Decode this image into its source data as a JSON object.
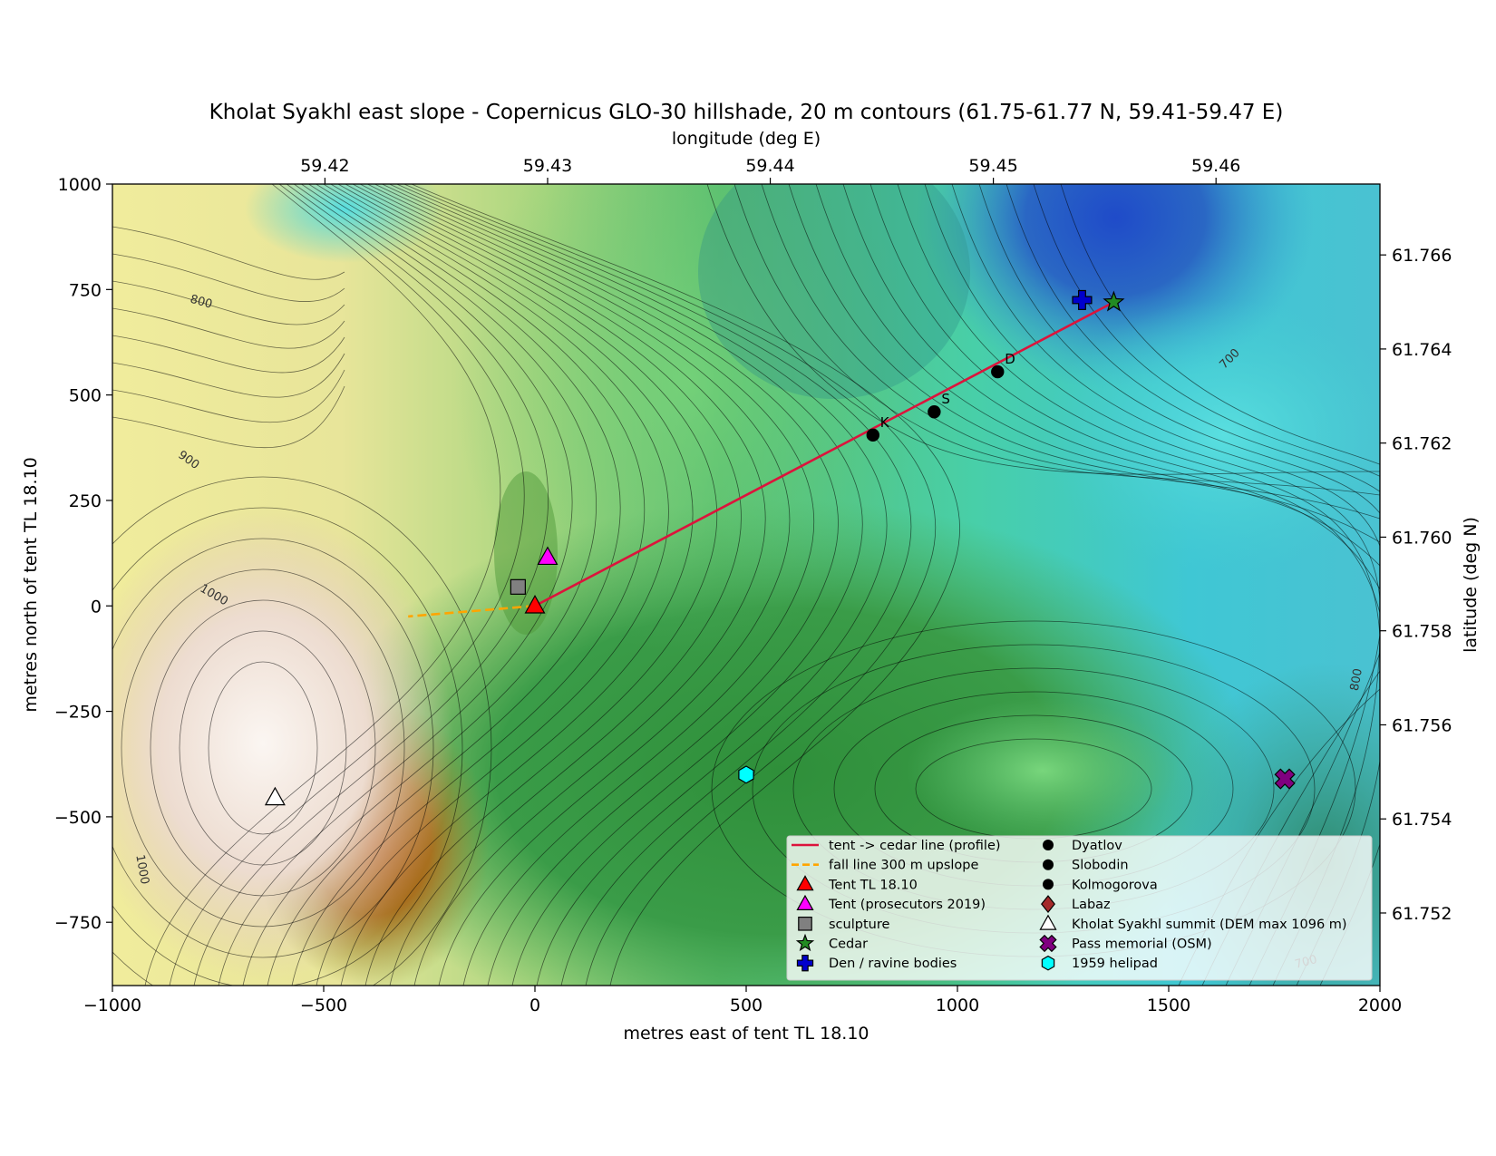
{
  "title": "Kholat Syakhl east slope - Copernicus GLO-30 hillshade, 20 m contours (61.75-61.77 N, 59.41-59.47 E)",
  "axes": {
    "xlabel": "metres east of tent TL 18.10",
    "ylabel": "metres north of tent TL 18.10",
    "top_label": "longitude (deg E)",
    "right_label": "latitude (deg N)",
    "xlim": [
      -1000,
      2000
    ],
    "ylim": [
      -900,
      1000
    ],
    "x_ticks": [
      -1000,
      -500,
      0,
      500,
      1000,
      1500,
      2000
    ],
    "x_tick_labels": [
      "−1000",
      "−500",
      "0",
      "500",
      "1000",
      "1500",
      "2000"
    ],
    "y_ticks": [
      -750,
      -500,
      -250,
      0,
      250,
      500,
      750,
      1000
    ],
    "y_tick_labels": [
      "−750",
      "−500",
      "−250",
      "0",
      "250",
      "500",
      "750",
      "1000"
    ],
    "lon_ticks": [
      {
        "x": -497,
        "label": "59.42"
      },
      {
        "x": 30,
        "label": "59.43"
      },
      {
        "x": 557,
        "label": "59.44"
      },
      {
        "x": 1085,
        "label": "59.45"
      },
      {
        "x": 1612,
        "label": "59.46"
      }
    ],
    "lat_ticks": [
      {
        "y": 832,
        "label": "61.766"
      },
      {
        "y": 609,
        "label": "61.764"
      },
      {
        "y": 386,
        "label": "61.762"
      },
      {
        "y": 163,
        "label": "61.760"
      },
      {
        "y": -59,
        "label": "61.758"
      },
      {
        "y": -282,
        "label": "61.756"
      },
      {
        "y": -505,
        "label": "61.754"
      },
      {
        "y": -728,
        "label": "61.752"
      }
    ]
  },
  "contour_labels": [
    {
      "x": -790,
      "y": 720,
      "text": "800",
      "angle": 15
    },
    {
      "x": -820,
      "y": 345,
      "text": "900",
      "angle": 35
    },
    {
      "x": -760,
      "y": 25,
      "text": "1000",
      "angle": 30
    },
    {
      "x": -930,
      "y": -625,
      "text": "1000",
      "angle": 80
    },
    {
      "x": 1645,
      "y": 585,
      "text": "700",
      "angle": -45
    },
    {
      "x": 1945,
      "y": -175,
      "text": "800",
      "angle": -80
    },
    {
      "x": 1825,
      "y": -845,
      "text": "700",
      "angle": -15
    }
  ],
  "chart_data": {
    "type": "map",
    "profile_line": {
      "from": [
        0,
        0
      ],
      "to": [
        1370,
        720
      ]
    },
    "fall_line": {
      "from": [
        0,
        0
      ],
      "to": [
        -300,
        -25
      ]
    },
    "markers": [
      {
        "id": "tent",
        "x": 0,
        "y": 0
      },
      {
        "id": "tent2019",
        "x": 30,
        "y": 115
      },
      {
        "id": "sculpture",
        "x": -40,
        "y": 45
      },
      {
        "id": "cedar",
        "x": 1370,
        "y": 720
      },
      {
        "id": "den",
        "x": 1295,
        "y": 725
      },
      {
        "id": "dyatlov",
        "x": 1095,
        "y": 555,
        "label": "D"
      },
      {
        "id": "slobodin",
        "x": 945,
        "y": 460,
        "label": "S"
      },
      {
        "id": "kolmogorova",
        "x": 800,
        "y": 405,
        "label": "K"
      },
      {
        "id": "summit",
        "x": -615,
        "y": -455
      },
      {
        "id": "memorial",
        "x": 1775,
        "y": -410
      },
      {
        "id": "helipad",
        "x": 500,
        "y": -400
      }
    ]
  },
  "legend": {
    "col1": [
      {
        "label": "tent -> cedar line (profile)",
        "symbol": "line-solid",
        "color": "#dc143c"
      },
      {
        "label": "fall line 300 m upslope",
        "symbol": "line-dashed",
        "color": "#ffa500"
      },
      {
        "label": "Tent TL 18.10",
        "symbol": "triangle",
        "color": "#ff0000"
      },
      {
        "label": "Tent (prosecutors 2019)",
        "symbol": "triangle",
        "color": "#ff00ff"
      },
      {
        "label": "sculpture",
        "symbol": "square",
        "color": "#808080"
      },
      {
        "label": "Cedar",
        "symbol": "star",
        "color": "#228b22"
      },
      {
        "label": "Den / ravine bodies",
        "symbol": "plus",
        "color": "#0000cd"
      }
    ],
    "col2": [
      {
        "label": "Dyatlov",
        "symbol": "circle",
        "color": "#000000"
      },
      {
        "label": "Slobodin",
        "symbol": "circle",
        "color": "#000000"
      },
      {
        "label": "Kolmogorova",
        "symbol": "circle",
        "color": "#000000"
      },
      {
        "label": "Labaz",
        "symbol": "diamond",
        "color": "#a52a2a"
      },
      {
        "label": "Kholat Syakhl summit (DEM max 1096 m)",
        "symbol": "triangle",
        "color": "#ffffff"
      },
      {
        "label": "Pass memorial (OSM)",
        "symbol": "xcross",
        "color": "#800080"
      },
      {
        "label": "1959 helipad",
        "symbol": "hexagon",
        "color": "#00ffff"
      }
    ]
  }
}
